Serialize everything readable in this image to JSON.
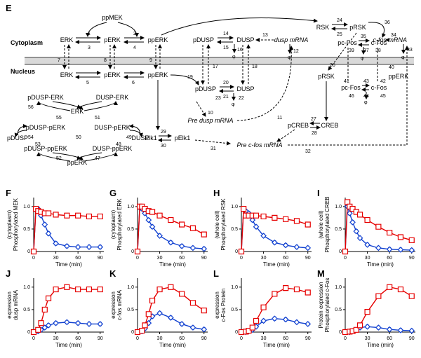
{
  "panelE": {
    "letter": "E",
    "compartments": {
      "cytoplasm": "Cytoplasm",
      "nucleus": "Nucleus"
    },
    "species": {
      "ppMEK": "ppMEK",
      "ERK": "ERK",
      "pERK": "pERK",
      "ppERK": "ppERK",
      "pDUSP": "pDUSP",
      "DUSP": "DUSP",
      "duspmRNA": "dusp mRNA",
      "RSK": "RSK",
      "pRSK": "pRSK",
      "pcFos": "pc-Fos",
      "cFos": "c-Fos",
      "cfosmRNA": "c-fos mRNA",
      "Elk1": "Elk1",
      "pElk1": "pElk1",
      "preDusp": "Pre dusp mRNA",
      "preCfos": "Pre c-fos mRNA",
      "pCREB": "pCREB",
      "CREB": "CREB",
      "pDUSP_ERK": "pDUSP-ERK",
      "DUSP_ERK": "DUSP-ERK",
      "pDUSP_pERK": "pDUSP-pERK",
      "DUSP_pERK": "DUSP-pERK",
      "pDUSP_ppERK": "pDUSP-ppERK",
      "DUSP_ppERK": "DUSP-ppERK"
    }
  },
  "charts": {
    "common": {
      "xlabel": "Time (min)",
      "xticks": [
        0,
        30,
        60,
        90
      ],
      "xlim": [
        0,
        95
      ],
      "line_red": "#e60000",
      "line_blue": "#1040d0",
      "marker_red": "square",
      "marker_blue": "diamond",
      "marker_size": 3.5,
      "err_red": 0.05,
      "err_blue": 0.04,
      "bg": "#ffffff",
      "axis_color": "#000000"
    },
    "F": {
      "letter": "F",
      "ylabel": "Phosphorylated MEK\n(cytoplasm)",
      "ylim": [
        0,
        1.2
      ],
      "yticks": [
        0,
        0.5,
        1.0
      ],
      "x": [
        0,
        3,
        6,
        10,
        15,
        20,
        30,
        45,
        60,
        75,
        90
      ],
      "red": [
        0,
        0.95,
        0.9,
        0.88,
        0.85,
        0.85,
        0.82,
        0.8,
        0.8,
        0.78,
        0.78
      ],
      "blue": [
        0,
        0.95,
        0.95,
        0.8,
        0.6,
        0.4,
        0.18,
        0.12,
        0.1,
        0.1,
        0.1
      ]
    },
    "G": {
      "letter": "G",
      "ylabel": "Phosphorylated ERK\n(cytoplasm)",
      "ylim": [
        0,
        1.2
      ],
      "yticks": [
        0,
        0.5,
        1.0
      ],
      "x": [
        0,
        3,
        6,
        10,
        15,
        20,
        30,
        45,
        60,
        75,
        90
      ],
      "red": [
        0,
        1.0,
        1.0,
        0.95,
        0.9,
        0.88,
        0.8,
        0.7,
        0.6,
        0.52,
        0.38
      ],
      "blue": [
        0,
        0.98,
        0.95,
        0.85,
        0.7,
        0.55,
        0.35,
        0.2,
        0.12,
        0.08,
        0.06
      ]
    },
    "H": {
      "letter": "H",
      "ylabel": "Phosphorylated RSK\n(whole cell)",
      "ylim": [
        0,
        1.2
      ],
      "yticks": [
        0,
        0.5,
        1.0
      ],
      "x": [
        0,
        3,
        6,
        10,
        15,
        20,
        30,
        45,
        60,
        75,
        90
      ],
      "red": [
        0,
        0.95,
        0.8,
        0.8,
        0.8,
        0.8,
        0.78,
        0.75,
        0.72,
        0.68,
        0.6
      ],
      "blue": [
        0,
        0.95,
        0.9,
        0.85,
        0.7,
        0.55,
        0.35,
        0.2,
        0.14,
        0.1,
        0.08
      ]
    },
    "I": {
      "letter": "I",
      "ylabel": "Phosphorylated CREB\n(whole cell)",
      "ylim": [
        0,
        1.2
      ],
      "yticks": [
        0,
        0.5,
        1.0
      ],
      "x": [
        0,
        3,
        6,
        10,
        15,
        20,
        30,
        45,
        60,
        75,
        90
      ],
      "red": [
        0,
        1.1,
        1.0,
        0.95,
        0.88,
        0.82,
        0.7,
        0.55,
        0.42,
        0.32,
        0.25
      ],
      "blue": [
        0,
        1.0,
        0.85,
        0.65,
        0.45,
        0.3,
        0.15,
        0.08,
        0.05,
        0.04,
        0.03
      ]
    },
    "J": {
      "letter": "J",
      "ylabel": "dusp mRNA\nexpression",
      "ylim": [
        0,
        1.2
      ],
      "yticks": [
        0,
        0.5,
        1.0
      ],
      "x": [
        0,
        6,
        10,
        15,
        20,
        30,
        45,
        60,
        75,
        90
      ],
      "red": [
        0,
        0.05,
        0.2,
        0.5,
        0.75,
        0.95,
        1.0,
        0.95,
        0.95,
        0.95
      ],
      "blue": [
        0,
        0.02,
        0.05,
        0.1,
        0.15,
        0.2,
        0.22,
        0.2,
        0.18,
        0.18
      ]
    },
    "K": {
      "letter": "K",
      "ylabel": "c-fos mRNA\nexpression",
      "ylim": [
        0,
        1.2
      ],
      "yticks": [
        0,
        0.5,
        1.0
      ],
      "x": [
        0,
        6,
        10,
        15,
        20,
        30,
        45,
        60,
        75,
        90
      ],
      "red": [
        0,
        0.03,
        0.15,
        0.4,
        0.7,
        0.95,
        1.0,
        0.85,
        0.65,
        0.48
      ],
      "blue": [
        0,
        0.02,
        0.08,
        0.2,
        0.35,
        0.42,
        0.32,
        0.18,
        0.1,
        0.06
      ]
    },
    "L": {
      "letter": "L",
      "ylabel": "c-Fos Protein\nexpression",
      "ylim": [
        0,
        1.2
      ],
      "yticks": [
        0,
        0.5,
        1.0
      ],
      "x": [
        0,
        6,
        10,
        15,
        20,
        30,
        45,
        60,
        75,
        90
      ],
      "red": [
        0,
        0.01,
        0.03,
        0.1,
        0.25,
        0.55,
        0.85,
        0.98,
        0.95,
        0.88
      ],
      "blue": [
        0,
        0.0,
        0.02,
        0.05,
        0.12,
        0.25,
        0.3,
        0.28,
        0.22,
        0.18
      ]
    },
    "M": {
      "letter": "M",
      "ylabel": "Phosphorylated c-Fos\nProtein expression",
      "ylim": [
        0,
        1.2
      ],
      "yticks": [
        0,
        0.5,
        1.0
      ],
      "x": [
        0,
        6,
        10,
        15,
        20,
        30,
        45,
        60,
        75,
        90
      ],
      "red": [
        0,
        0.01,
        0.02,
        0.05,
        0.15,
        0.45,
        0.8,
        1.0,
        0.95,
        0.8
      ],
      "blue": [
        0,
        0.0,
        0.02,
        0.05,
        0.1,
        0.12,
        0.1,
        0.06,
        0.04,
        0.03
      ]
    }
  }
}
